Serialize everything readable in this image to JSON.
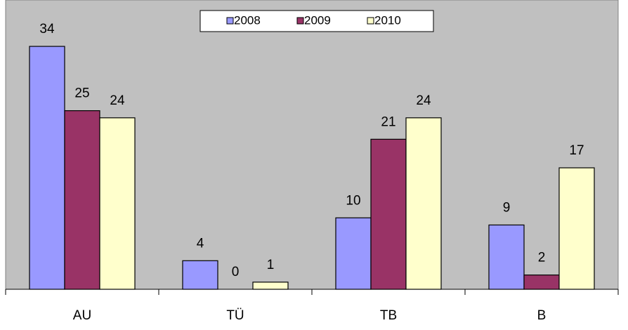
{
  "chart_data": {
    "type": "bar",
    "categories": [
      "AU",
      "TÜ",
      "TB",
      "B"
    ],
    "series": [
      {
        "name": "2008",
        "color": "#9999ff",
        "values": [
          34,
          4,
          10,
          9
        ]
      },
      {
        "name": "2009",
        "color": "#993366",
        "values": [
          25,
          0,
          21,
          2
        ]
      },
      {
        "name": "2010",
        "color": "#ffffcc",
        "values": [
          24,
          1,
          24,
          17
        ]
      }
    ],
    "ylim": [
      0,
      40
    ],
    "legend": "top"
  }
}
